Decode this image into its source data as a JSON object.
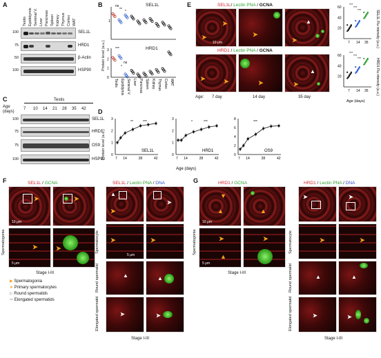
{
  "panels": {
    "A": {
      "label": "A",
      "samples": [
        "Testis",
        "Epididymis",
        "Seminal V.",
        "Liver",
        "Pancreas",
        "Spleen",
        "Kidney",
        "Thymus",
        "Cortex",
        "WAT"
      ],
      "mw": [
        "100",
        "75",
        "50",
        "100"
      ],
      "proteins": [
        "SEL1L",
        "HRD1",
        "β-Actin",
        "HSP90"
      ]
    },
    "B": {
      "label": "B",
      "title_top": "SEL1L",
      "title_bottom": "HRD1",
      "ylabel": "Protein level (a.u.)",
      "sig_top": [
        "ns",
        "**",
        "*"
      ],
      "sig_bottom": [
        "***",
        "ns",
        "*"
      ],
      "categories": [
        "Testis",
        "Epididymis",
        "Seminal V.",
        "Liver",
        "Pancreas",
        "Spleen",
        "Kidney",
        "Thymus",
        "Cortex",
        "WAT"
      ],
      "top_ticks": [
        "1"
      ],
      "bottom_ticks": [
        "3",
        "2",
        "1",
        "0"
      ]
    },
    "C": {
      "label": "C",
      "header": "Testis",
      "age_label": "Age (days)",
      "ages": [
        "7",
        "10",
        "14",
        "21",
        "28",
        "35",
        "42"
      ],
      "mw": [
        "100",
        "75",
        "75",
        "100"
      ],
      "proteins": [
        "SEL1L",
        "HRD1",
        "OS9",
        "HSP90"
      ]
    },
    "D": {
      "label": "D",
      "ylabel": "Protein level (a.u.)",
      "xlabel": "Age (days)"
    },
    "E": {
      "label": "E",
      "title_parts": [
        "SEL1L",
        "/ ",
        "Lectin PNA",
        " / ",
        "GCNA"
      ],
      "title2_parts": [
        "HRD1",
        " / ",
        "Lectin PNA",
        " / ",
        "GCNA"
      ],
      "age_prefix": "Age:",
      "ages": [
        "7 day",
        "14 day",
        "35 day"
      ],
      "scale": "10 μm",
      "xlabel": "Age (days)"
    },
    "F": {
      "label": "F",
      "left_title": [
        "SEL1L",
        " / ",
        "GCNA"
      ],
      "right_title": [
        "SEL1L",
        " / ",
        "Lectin PNA",
        " / ",
        "DNA"
      ],
      "row_labels": [
        "Spermatogonia",
        "Spermatocyte",
        "Round spermatid",
        "Elongated spermatid"
      ],
      "stage": "Stage I-III",
      "scales": [
        "10 μm",
        "5 μm"
      ],
      "legend": [
        "Spermatogonia",
        "Primary spermatocytes",
        "Round spermatids",
        "Elongated spermatids"
      ]
    },
    "G": {
      "label": "G",
      "left_title": [
        "HRD1",
        " / ",
        "GCNA"
      ],
      "right_title": [
        "HRD1",
        " / ",
        "Lectin PNA",
        " / ",
        "DNA"
      ],
      "row_labels": [
        "Spermatogonia",
        "Spermatocyte",
        "Round spermatid",
        "Elongated spermatid"
      ],
      "stage": "Stage I-III"
    }
  },
  "chart_data": [
    {
      "type": "scatter",
      "title": "SEL1L",
      "categories": [
        "Testis",
        "Epididymis",
        "Seminal V.",
        "Liver",
        "Pancreas",
        "Spleen",
        "Kidney",
        "Thymus",
        "Cortex",
        "WAT"
      ],
      "series": [
        {
          "values": [
            1.0,
            0.75,
            0.95,
            0.9,
            0.7,
            0.75,
            0.8,
            0.6,
            0.65,
            0.5
          ]
        }
      ]
    },
    {
      "type": "scatter",
      "title": "HRD1",
      "categories": [
        "Testis",
        "Epididymis",
        "Seminal V.",
        "Liver",
        "Pancreas",
        "Spleen",
        "Kidney",
        "Thymus",
        "Cortex",
        "WAT"
      ],
      "ylim": [
        0,
        3
      ],
      "series": [
        {
          "values": [
            2.0,
            2.2,
            0.2,
            0.6,
            0.2,
            0.3,
            0.5,
            0.7,
            0.8,
            2.6
          ]
        }
      ]
    },
    {
      "type": "line",
      "title": "SEL1L",
      "x": [
        7,
        10,
        14,
        21,
        28,
        35,
        42
      ],
      "xticks": [
        "7",
        "14",
        "28",
        "42"
      ],
      "ylim": [
        0,
        3
      ],
      "yticks": [
        "3",
        "2",
        "1",
        "0"
      ],
      "series": [
        {
          "values": [
            1.0,
            1.4,
            1.8,
            2.1,
            2.4,
            2.5,
            2.6
          ]
        }
      ],
      "sig": [
        "**",
        "***"
      ]
    },
    {
      "type": "line",
      "title": "HRD1",
      "x": [
        7,
        10,
        14,
        21,
        28,
        35,
        42
      ],
      "xticks": [
        "7",
        "14",
        "28",
        "42"
      ],
      "ylim": [
        0,
        3
      ],
      "yticks": [
        "3",
        "2",
        "1",
        "0"
      ],
      "series": [
        {
          "values": [
            1.2,
            1.2,
            1.6,
            1.9,
            2.1,
            2.3,
            2.4
          ]
        }
      ],
      "sig": [
        "*",
        "***"
      ]
    },
    {
      "type": "line",
      "title": "OS9",
      "x": [
        7,
        10,
        14,
        21,
        28,
        35,
        42
      ],
      "xticks": [
        "7",
        "14",
        "28",
        "42"
      ],
      "ylim": [
        0,
        8
      ],
      "yticks": [
        "8",
        "6",
        "4",
        "2",
        "0"
      ],
      "series": [
        {
          "values": [
            1.2,
            2.0,
            3.5,
            4.5,
            5.8,
            6.3,
            6.4
          ]
        }
      ],
      "sig": [
        "***"
      ]
    },
    {
      "type": "scatter",
      "ylabel": "SEL1L Flu intensity (a.u.)",
      "categories": [
        "7",
        "14",
        "35"
      ],
      "yticks": [
        "60",
        "40",
        "20"
      ],
      "ylim": [
        0,
        60
      ],
      "series": [
        {
          "values": [
            20,
            28,
            44
          ]
        }
      ],
      "sig": [
        "***",
        "***",
        "***"
      ]
    },
    {
      "type": "scatter",
      "ylabel": "HRD1 Flu intensity (a.u.)",
      "categories": [
        "7",
        "14",
        "35"
      ],
      "yticks": [
        "60",
        "40",
        "20"
      ],
      "ylim": [
        0,
        60
      ],
      "series": [
        {
          "values": [
            22,
            32,
            48
          ]
        }
      ],
      "sig": [
        "***",
        "***",
        "***"
      ]
    }
  ]
}
